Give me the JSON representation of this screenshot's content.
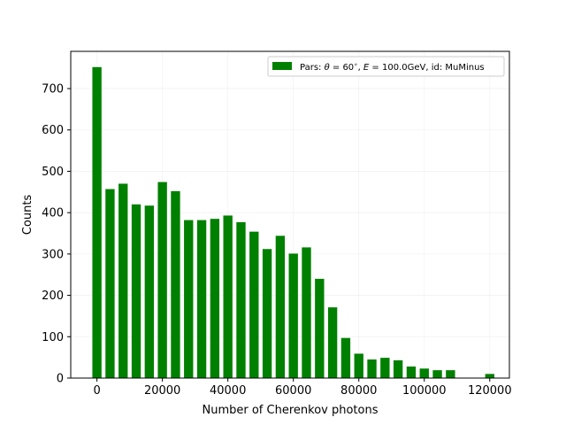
{
  "chart_data": {
    "type": "bar",
    "title": "",
    "xlabel": "Number of Cherenkov photons",
    "ylabel": "Counts",
    "xlim": [
      -8000,
      126000
    ],
    "ylim": [
      0,
      790
    ],
    "x_ticks": [
      0,
      20000,
      40000,
      60000,
      80000,
      100000,
      120000
    ],
    "y_ticks": [
      0,
      100,
      200,
      300,
      400,
      500,
      600,
      700
    ],
    "grid": true,
    "legend_position": "top-right",
    "bar_color": "#008000",
    "bin_width": 4000,
    "bar_width": 2800,
    "series": [
      {
        "name": "Pars: θ = 60°, E = 100.0GeV, id: MuMinus",
        "legend_parts": {
          "prefix": "Pars: ",
          "theta_symbol": "θ",
          "theta_value": " = 60",
          "degree": "∘",
          "sep1": ", ",
          "energy_symbol": "E",
          "energy_value": " = 100.0GeV, id: MuMinus"
        },
        "x": [
          0,
          4000,
          8000,
          12000,
          16000,
          20000,
          24000,
          28000,
          32000,
          36000,
          40000,
          44000,
          48000,
          52000,
          56000,
          60000,
          64000,
          68000,
          72000,
          76000,
          80000,
          84000,
          88000,
          92000,
          96000,
          100000,
          104000,
          108000,
          112000,
          116000,
          120000
        ],
        "values": [
          752,
          457,
          470,
          420,
          417,
          474,
          452,
          382,
          382,
          385,
          393,
          377,
          354,
          312,
          344,
          301,
          316,
          240,
          171,
          97,
          59,
          45,
          49,
          43,
          28,
          23,
          19,
          19,
          0,
          0,
          10
        ]
      }
    ]
  }
}
